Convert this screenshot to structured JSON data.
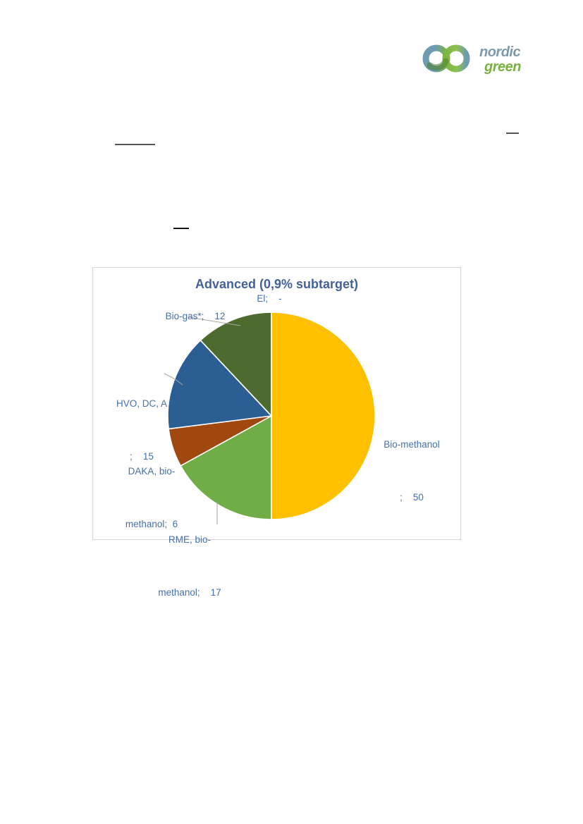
{
  "logo": {
    "brand_top": "nordic",
    "brand_bottom": "green",
    "colors": {
      "text_blue": "#7E99AC",
      "text_green": "#79B23E",
      "ribbon_blue": "#6E9AB2",
      "ribbon_green": "#7CB63F",
      "ribbon_dark_green": "#4F7F2E"
    }
  },
  "chart_data": {
    "type": "pie",
    "title": "Advanced (0,9% subtarget)",
    "title_color": "#44609C",
    "label_color": "#4470AC",
    "legend": "none",
    "direction": "clockwise",
    "start_angle_deg": 0,
    "segments": [
      {
        "label": "Bio-methanol",
        "value": 50,
        "color": "#FFC000"
      },
      {
        "label": "RME, bio-methanol",
        "value": 17,
        "color": "#70AD47"
      },
      {
        "label": "DAKA, bio-methanol",
        "value": 6,
        "color": "#A0480F"
      },
      {
        "label": "HVO, DC, A",
        "value": 15,
        "color": "#2B5F94"
      },
      {
        "label": "Bio-gas*",
        "value": 12,
        "color": "#4E6B2F"
      },
      {
        "label": "El",
        "value": 0,
        "display_value": "-",
        "color": null
      }
    ]
  },
  "labels": {
    "el": "El;    -",
    "biogas": "Bio-gas*;    12",
    "hvo_line1": "HVO, DC, A",
    "hvo_line2": ";    15",
    "daka_line1": "DAKA, bio-",
    "daka_line2": "methanol;  6",
    "rme_line1": "RME, bio-",
    "rme_line2": "methanol;    17",
    "biomethanol_line1": "Bio-methanol",
    "biomethanol_line2": ";    50"
  }
}
